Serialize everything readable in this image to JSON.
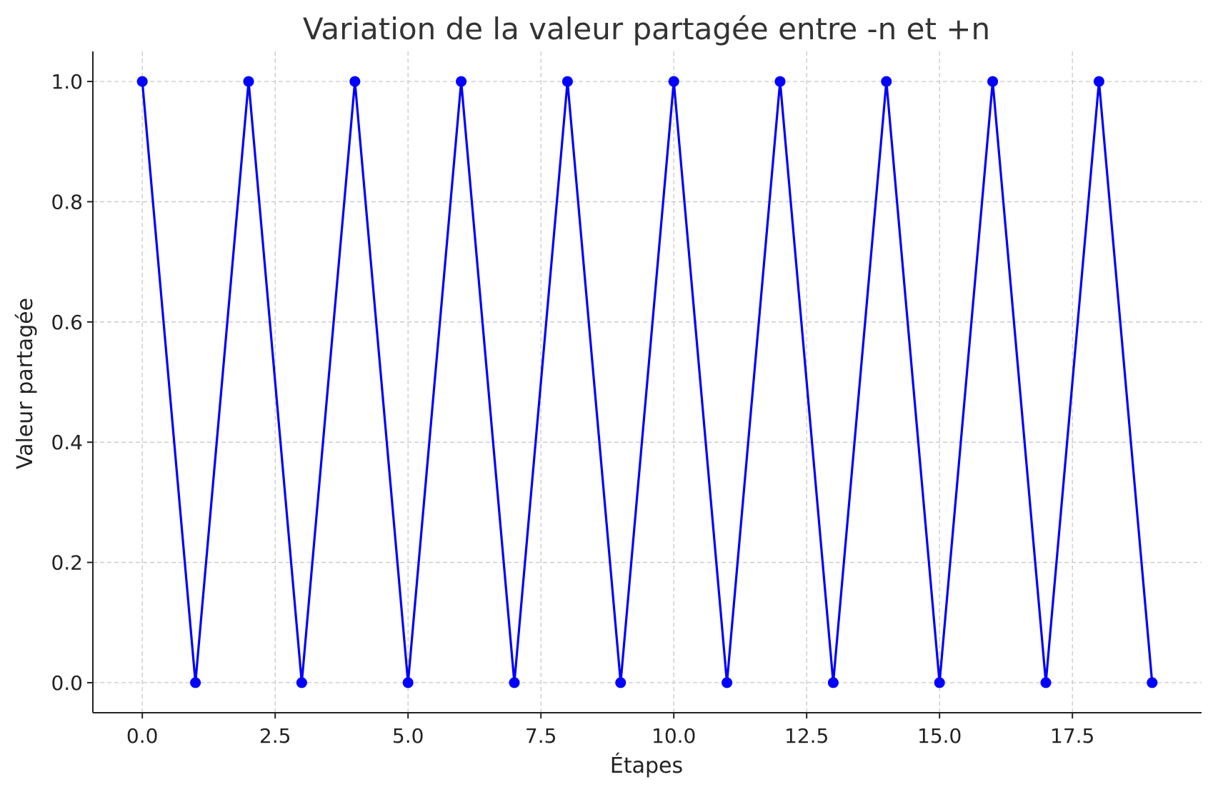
{
  "chart_data": {
    "type": "line",
    "title": "Variation de la valeur partagée entre -n et +n",
    "xlabel": "Étapes",
    "ylabel": "Valeur partagée",
    "xlim": [
      -0.93,
      19.93
    ],
    "ylim": [
      -0.05,
      1.05
    ],
    "x_ticks": [
      0.0,
      2.5,
      5.0,
      7.5,
      10.0,
      12.5,
      15.0,
      17.5
    ],
    "x_tick_labels": [
      "0.0",
      "2.5",
      "5.0",
      "7.5",
      "10.0",
      "12.5",
      "15.0",
      "17.5"
    ],
    "y_ticks": [
      0.0,
      0.2,
      0.4,
      0.6,
      0.8,
      1.0
    ],
    "y_tick_labels": [
      "0.0",
      "0.2",
      "0.4",
      "0.6",
      "0.8",
      "1.0"
    ],
    "grid": true,
    "series": [
      {
        "color": "#0000ff",
        "marker": "circle",
        "x": [
          0,
          1,
          2,
          3,
          4,
          5,
          6,
          7,
          8,
          9,
          10,
          11,
          12,
          13,
          14,
          15,
          16,
          17,
          18,
          19
        ],
        "y": [
          1,
          0,
          1,
          0,
          1,
          0,
          1,
          0,
          1,
          0,
          1,
          0,
          1,
          0,
          1,
          0,
          1,
          0,
          1,
          0
        ]
      }
    ]
  }
}
